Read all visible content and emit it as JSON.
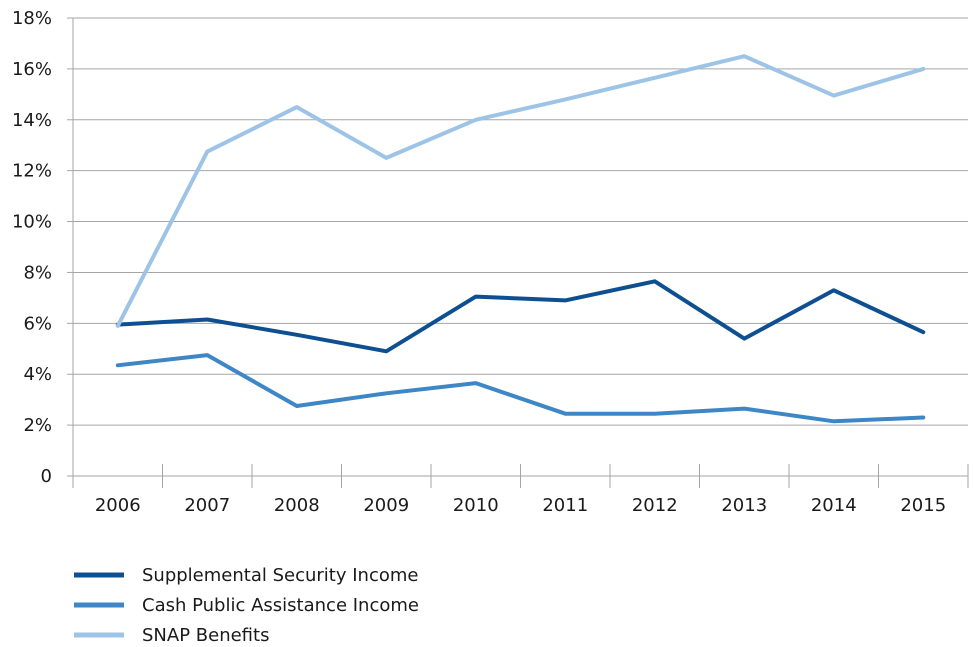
{
  "chart_data": {
    "type": "line",
    "title": "",
    "xlabel": "",
    "ylabel": "",
    "categories": [
      "2006",
      "2007",
      "2008",
      "2009",
      "2010",
      "2011",
      "2012",
      "2013",
      "2014",
      "2015"
    ],
    "ylim": [
      0,
      18
    ],
    "yticks": [
      0,
      2,
      4,
      6,
      8,
      10,
      12,
      14,
      16,
      18
    ],
    "ytick_labels": [
      "0",
      "2%",
      "4%",
      "6%",
      "8%",
      "10%",
      "12%",
      "14%",
      "16%",
      "18%"
    ],
    "grid": "horizontal",
    "legend_position": "bottom-left",
    "series": [
      {
        "name": "Supplemental Security Income",
        "color": "#0e4f92",
        "values": [
          5.95,
          6.15,
          5.55,
          4.9,
          7.05,
          6.9,
          7.65,
          5.4,
          7.3,
          5.65
        ]
      },
      {
        "name": "Cash Public Assistance Income",
        "color": "#3e87c6",
        "values": [
          4.35,
          4.75,
          2.75,
          3.25,
          3.65,
          2.45,
          2.45,
          2.65,
          2.15,
          2.3
        ]
      },
      {
        "name": "SNAP Benefits",
        "color": "#9dc4e6",
        "values": [
          5.9,
          12.75,
          14.5,
          12.5,
          14.0,
          14.8,
          15.65,
          16.5,
          14.95,
          16.0
        ]
      }
    ]
  }
}
